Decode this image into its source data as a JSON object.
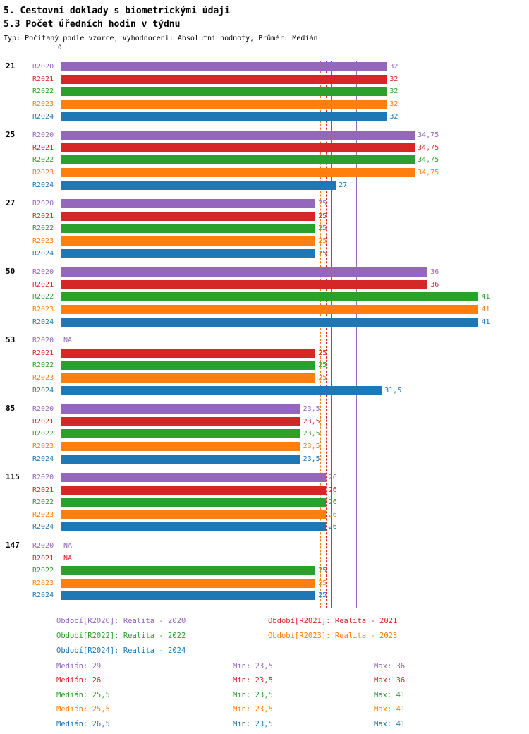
{
  "header": {
    "title": "5. Cestovní doklady s biometrickými údaji",
    "subtitle": "5.3 Počet úředních hodin v týdnu",
    "meta": "Typ: Počítaný podle vzorce, Vyhodnocení: Absolutní hodnoty, Průměr: Medián"
  },
  "axis": {
    "zero_label": "0"
  },
  "series": [
    {
      "id": "R2020",
      "color": "#9467bd",
      "line_style": "solid",
      "legend_label": "Období[R2020]: Realita - 2020",
      "median": 29,
      "stats": {
        "median": "Medián: 29",
        "min": "Min: 23,5",
        "max": "Max: 36"
      }
    },
    {
      "id": "R2021",
      "color": "#d62728",
      "line_style": "dashed",
      "legend_label": "Období[R2021]: Realita - 2021",
      "median": 26,
      "stats": {
        "median": "Medián: 26",
        "min": "Min: 23,5",
        "max": "Max: 36"
      }
    },
    {
      "id": "R2022",
      "color": "#2ca02c",
      "line_style": "dashed",
      "legend_label": "Období[R2022]: Realita - 2022",
      "median": 25.5,
      "stats": {
        "median": "Medián: 25,5",
        "min": "Min: 23,5",
        "max": "Max: 41"
      }
    },
    {
      "id": "R2023",
      "color": "#ff7f0e",
      "line_style": "dashed",
      "legend_label": "Období[R2023]: Realita - 2023",
      "median": 25.5,
      "stats": {
        "median": "Medián: 25,5",
        "min": "Min: 23,5",
        "max": "Max: 41"
      }
    },
    {
      "id": "R2024",
      "color": "#1f77b4",
      "line_style": "solid",
      "legend_label": "Období[R2024]: Realita - 2024",
      "median": 26.5,
      "stats": {
        "median": "Medián: 26,5",
        "min": "Min: 23,5",
        "max": "Max: 41"
      }
    }
  ],
  "chart_data": {
    "type": "bar",
    "orientation": "horizontal",
    "title": "5.3 Počet úředních hodin v týdnu",
    "xlim": [
      0,
      41
    ],
    "grid": false,
    "legend_position": "bottom",
    "groups": [
      {
        "label": "21",
        "bars": [
          {
            "series": "R2020",
            "value": 32,
            "display": "32"
          },
          {
            "series": "R2021",
            "value": 32,
            "display": "32"
          },
          {
            "series": "R2022",
            "value": 32,
            "display": "32"
          },
          {
            "series": "R2023",
            "value": 32,
            "display": "32"
          },
          {
            "series": "R2024",
            "value": 32,
            "display": "32"
          }
        ]
      },
      {
        "label": "25",
        "bars": [
          {
            "series": "R2020",
            "value": 34.75,
            "display": "34,75"
          },
          {
            "series": "R2021",
            "value": 34.75,
            "display": "34,75"
          },
          {
            "series": "R2022",
            "value": 34.75,
            "display": "34,75"
          },
          {
            "series": "R2023",
            "value": 34.75,
            "display": "34,75"
          },
          {
            "series": "R2024",
            "value": 27,
            "display": "27"
          }
        ]
      },
      {
        "label": "27",
        "bars": [
          {
            "series": "R2020",
            "value": 25,
            "display": "25"
          },
          {
            "series": "R2021",
            "value": 25,
            "display": "25"
          },
          {
            "series": "R2022",
            "value": 25,
            "display": "25"
          },
          {
            "series": "R2023",
            "value": 25,
            "display": "25"
          },
          {
            "series": "R2024",
            "value": 25,
            "display": "25"
          }
        ]
      },
      {
        "label": "50",
        "bars": [
          {
            "series": "R2020",
            "value": 36,
            "display": "36"
          },
          {
            "series": "R2021",
            "value": 36,
            "display": "36"
          },
          {
            "series": "R2022",
            "value": 41,
            "display": "41"
          },
          {
            "series": "R2023",
            "value": 41,
            "display": "41"
          },
          {
            "series": "R2024",
            "value": 41,
            "display": "41"
          }
        ]
      },
      {
        "label": "53",
        "bars": [
          {
            "series": "R2020",
            "value": null,
            "display": "NA"
          },
          {
            "series": "R2021",
            "value": 25,
            "display": "25"
          },
          {
            "series": "R2022",
            "value": 25,
            "display": "25"
          },
          {
            "series": "R2023",
            "value": 25,
            "display": "25"
          },
          {
            "series": "R2024",
            "value": 31.5,
            "display": "31,5"
          }
        ]
      },
      {
        "label": "85",
        "bars": [
          {
            "series": "R2020",
            "value": 23.5,
            "display": "23,5"
          },
          {
            "series": "R2021",
            "value": 23.5,
            "display": "23,5"
          },
          {
            "series": "R2022",
            "value": 23.5,
            "display": "23,5"
          },
          {
            "series": "R2023",
            "value": 23.5,
            "display": "23,5"
          },
          {
            "series": "R2024",
            "value": 23.5,
            "display": "23,5"
          }
        ]
      },
      {
        "label": "115",
        "bars": [
          {
            "series": "R2020",
            "value": 26,
            "display": "26"
          },
          {
            "series": "R2021",
            "value": 26,
            "display": "26"
          },
          {
            "series": "R2022",
            "value": 26,
            "display": "26"
          },
          {
            "series": "R2023",
            "value": 26,
            "display": "26"
          },
          {
            "series": "R2024",
            "value": 26,
            "display": "26"
          }
        ]
      },
      {
        "label": "147",
        "bars": [
          {
            "series": "R2020",
            "value": null,
            "display": "NA"
          },
          {
            "series": "R2021",
            "value": null,
            "display": "NA"
          },
          {
            "series": "R2022",
            "value": 25,
            "display": "25"
          },
          {
            "series": "R2023",
            "value": 25,
            "display": "25"
          },
          {
            "series": "R2024",
            "value": 25,
            "display": "25"
          }
        ]
      }
    ]
  }
}
